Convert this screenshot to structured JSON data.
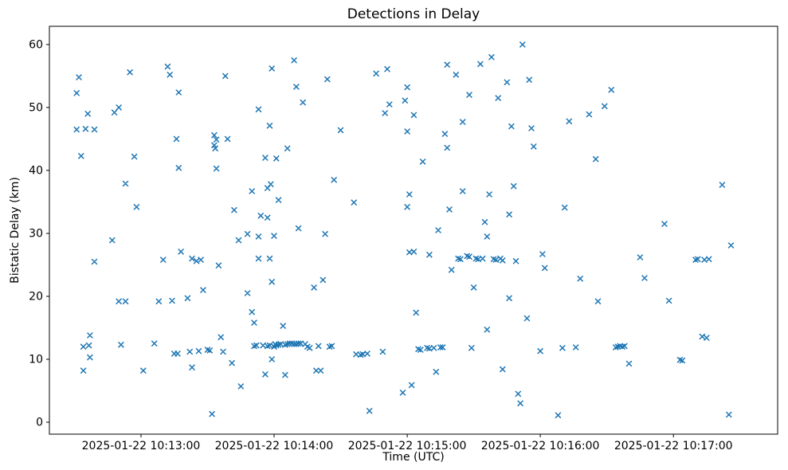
{
  "figure": {
    "background": "#ffffff"
  },
  "chart_data": {
    "type": "scatter",
    "title": "Detections in Delay",
    "xlabel": "Time (UTC)",
    "ylabel": "Bistatic Delay (km)",
    "marker": "x",
    "marker_color": "#1f77b4",
    "grid": false,
    "legend": "none",
    "t_zero_utc": "2025-01-22 10:12:00",
    "t_units": "seconds since t_zero_utc",
    "xlim": [
      18.7,
      347
    ],
    "ylim": [
      -1.9,
      62.9
    ],
    "x_ticks": [
      {
        "t": 60,
        "label": "2025-01-22 10:13:00"
      },
      {
        "t": 120,
        "label": "2025-01-22 10:14:00"
      },
      {
        "t": 180,
        "label": "2025-01-22 10:15:00"
      },
      {
        "t": 240,
        "label": "2025-01-22 10:16:00"
      },
      {
        "t": 300,
        "label": "2025-01-22 10:17:00"
      }
    ],
    "y_ticks": [
      0,
      10,
      20,
      30,
      40,
      50,
      60
    ],
    "points": [
      [
        31,
        52.3
      ],
      [
        32,
        54.8
      ],
      [
        31,
        46.5
      ],
      [
        35,
        46.6
      ],
      [
        33,
        42.3
      ],
      [
        36,
        49.0
      ],
      [
        34,
        12.0
      ],
      [
        36.5,
        12.2
      ],
      [
        34,
        8.2
      ],
      [
        37,
        13.8
      ],
      [
        37,
        10.3
      ],
      [
        39,
        25.5
      ],
      [
        39,
        46.5
      ],
      [
        47,
        28.9
      ],
      [
        48,
        49.2
      ],
      [
        50,
        50.0
      ],
      [
        50,
        19.2
      ],
      [
        53,
        19.2
      ],
      [
        51,
        12.3
      ],
      [
        53,
        37.9
      ],
      [
        55,
        55.6
      ],
      [
        57,
        42.2
      ],
      [
        58,
        34.2
      ],
      [
        61,
        8.2
      ],
      [
        66,
        12.5
      ],
      [
        68,
        19.2
      ],
      [
        70,
        25.8
      ],
      [
        72,
        56.5
      ],
      [
        73,
        55.2
      ],
      [
        74,
        19.3
      ],
      [
        75,
        10.9
      ],
      [
        76.5,
        10.9
      ],
      [
        76,
        45.0
      ],
      [
        77,
        52.4
      ],
      [
        77,
        40.4
      ],
      [
        78,
        27.1
      ],
      [
        81,
        19.7
      ],
      [
        82,
        11.2
      ],
      [
        83,
        8.7
      ],
      [
        83,
        26.0
      ],
      [
        85,
        25.6
      ],
      [
        86,
        11.3
      ],
      [
        87,
        25.8
      ],
      [
        88,
        21.0
      ],
      [
        90,
        11.5
      ],
      [
        91,
        11.4
      ],
      [
        92,
        1.3
      ],
      [
        93,
        44.0
      ],
      [
        93,
        45.6
      ],
      [
        93.5,
        43.5
      ],
      [
        94,
        44.9
      ],
      [
        94,
        40.3
      ],
      [
        95,
        24.9
      ],
      [
        96,
        13.5
      ],
      [
        97,
        11.2
      ],
      [
        98,
        55.0
      ],
      [
        99,
        45.0
      ],
      [
        101,
        9.4
      ],
      [
        102,
        33.7
      ],
      [
        104,
        28.9
      ],
      [
        105,
        5.7
      ],
      [
        108,
        20.5
      ],
      [
        108,
        29.9
      ],
      [
        110,
        36.7
      ],
      [
        110,
        17.5
      ],
      [
        111,
        15.8
      ],
      [
        111,
        12.1
      ],
      [
        112,
        12.2
      ],
      [
        113,
        49.7
      ],
      [
        113,
        29.5
      ],
      [
        113,
        26.0
      ],
      [
        114,
        32.8
      ],
      [
        115,
        12.2
      ],
      [
        116,
        7.6
      ],
      [
        116,
        42.0
      ],
      [
        117,
        37.2
      ],
      [
        117,
        32.5
      ],
      [
        117,
        12.1
      ],
      [
        118,
        47.1
      ],
      [
        118,
        26.0
      ],
      [
        118,
        12.2
      ],
      [
        118.5,
        37.8
      ],
      [
        119,
        22.3
      ],
      [
        119,
        56.2
      ],
      [
        119,
        10.0
      ],
      [
        120,
        29.6
      ],
      [
        120,
        12.0
      ],
      [
        120.5,
        12.4
      ],
      [
        121,
        41.9
      ],
      [
        121,
        12.2
      ],
      [
        122,
        35.3
      ],
      [
        122,
        12.3
      ],
      [
        123,
        12.4
      ],
      [
        124,
        15.3
      ],
      [
        125,
        7.5
      ],
      [
        125,
        12.3
      ],
      [
        126,
        43.5
      ],
      [
        126,
        12.4
      ],
      [
        127,
        12.5
      ],
      [
        128,
        12.5
      ],
      [
        129,
        12.4
      ],
      [
        129,
        57.5
      ],
      [
        130,
        53.3
      ],
      [
        130,
        12.4
      ],
      [
        131,
        30.8
      ],
      [
        131,
        12.5
      ],
      [
        132,
        12.5
      ],
      [
        133,
        50.8
      ],
      [
        134,
        12.4
      ],
      [
        135,
        12.0
      ],
      [
        136,
        11.8
      ],
      [
        138,
        21.4
      ],
      [
        139,
        8.2
      ],
      [
        140,
        12.1
      ],
      [
        141,
        8.2
      ],
      [
        142,
        22.6
      ],
      [
        143,
        29.9
      ],
      [
        144,
        54.5
      ],
      [
        145,
        12.0
      ],
      [
        146,
        12.1
      ],
      [
        147,
        38.5
      ],
      [
        150,
        46.4
      ],
      [
        156,
        34.9
      ],
      [
        157,
        10.8
      ],
      [
        159,
        10.7
      ],
      [
        160,
        10.8
      ],
      [
        162,
        10.9
      ],
      [
        163,
        1.8
      ],
      [
        166,
        55.4
      ],
      [
        169,
        11.2
      ],
      [
        170,
        49.1
      ],
      [
        171,
        56.1
      ],
      [
        172,
        50.5
      ],
      [
        178,
        4.7
      ],
      [
        179,
        51.1
      ],
      [
        180,
        46.2
      ],
      [
        180,
        53.2
      ],
      [
        180,
        34.2
      ],
      [
        181,
        36.2
      ],
      [
        181,
        27.0
      ],
      [
        182,
        5.9
      ],
      [
        183,
        48.8
      ],
      [
        183,
        27.1
      ],
      [
        184,
        17.4
      ],
      [
        185,
        11.6
      ],
      [
        186,
        11.5
      ],
      [
        187,
        41.4
      ],
      [
        189,
        11.8
      ],
      [
        190,
        26.6
      ],
      [
        190,
        11.7
      ],
      [
        192,
        11.8
      ],
      [
        193,
        8.0
      ],
      [
        194,
        30.5
      ],
      [
        195,
        11.9
      ],
      [
        196,
        11.9
      ],
      [
        197,
        45.8
      ],
      [
        198,
        43.6
      ],
      [
        198,
        56.8
      ],
      [
        199,
        33.8
      ],
      [
        200,
        24.2
      ],
      [
        202,
        55.2
      ],
      [
        203,
        26.0
      ],
      [
        204,
        25.9
      ],
      [
        205,
        47.7
      ],
      [
        205,
        36.7
      ],
      [
        207,
        26.4
      ],
      [
        208,
        26.3
      ],
      [
        208,
        52.0
      ],
      [
        209,
        11.8
      ],
      [
        210,
        21.4
      ],
      [
        211,
        26.0
      ],
      [
        212,
        25.9
      ],
      [
        213,
        56.9
      ],
      [
        214,
        26.0
      ],
      [
        215,
        31.8
      ],
      [
        216,
        29.5
      ],
      [
        216,
        14.7
      ],
      [
        217,
        36.2
      ],
      [
        218,
        58.0
      ],
      [
        219,
        25.9
      ],
      [
        220,
        25.8
      ],
      [
        221,
        51.5
      ],
      [
        222,
        26.0
      ],
      [
        223,
        25.7
      ],
      [
        223,
        8.4
      ],
      [
        225,
        54.0
      ],
      [
        226,
        33.0
      ],
      [
        226,
        19.7
      ],
      [
        227,
        47.0
      ],
      [
        228,
        37.5
      ],
      [
        229,
        25.6
      ],
      [
        230,
        4.5
      ],
      [
        231,
        3.0
      ],
      [
        232,
        60.0
      ],
      [
        234,
        16.5
      ],
      [
        235,
        54.4
      ],
      [
        236,
        46.7
      ],
      [
        237,
        43.8
      ],
      [
        240,
        11.3
      ],
      [
        241,
        26.7
      ],
      [
        242,
        24.5
      ],
      [
        248,
        1.1
      ],
      [
        250,
        11.8
      ],
      [
        251,
        34.1
      ],
      [
        253,
        47.8
      ],
      [
        256,
        11.9
      ],
      [
        258,
        22.8
      ],
      [
        262,
        48.9
      ],
      [
        265,
        41.8
      ],
      [
        266,
        19.2
      ],
      [
        269,
        50.2
      ],
      [
        272,
        52.8
      ],
      [
        274,
        11.9
      ],
      [
        275,
        12.0
      ],
      [
        276,
        12.1
      ],
      [
        277,
        12.0
      ],
      [
        278,
        12.1
      ],
      [
        280,
        9.3
      ],
      [
        285,
        26.2
      ],
      [
        287,
        22.9
      ],
      [
        296,
        31.5
      ],
      [
        298,
        19.3
      ],
      [
        303,
        9.9
      ],
      [
        304,
        9.8
      ],
      [
        310,
        25.8
      ],
      [
        311,
        25.9
      ],
      [
        313,
        13.6
      ],
      [
        314,
        25.8
      ],
      [
        315,
        13.4
      ],
      [
        316,
        25.9
      ],
      [
        322,
        37.7
      ],
      [
        325,
        1.2
      ],
      [
        326,
        28.1
      ]
    ]
  }
}
